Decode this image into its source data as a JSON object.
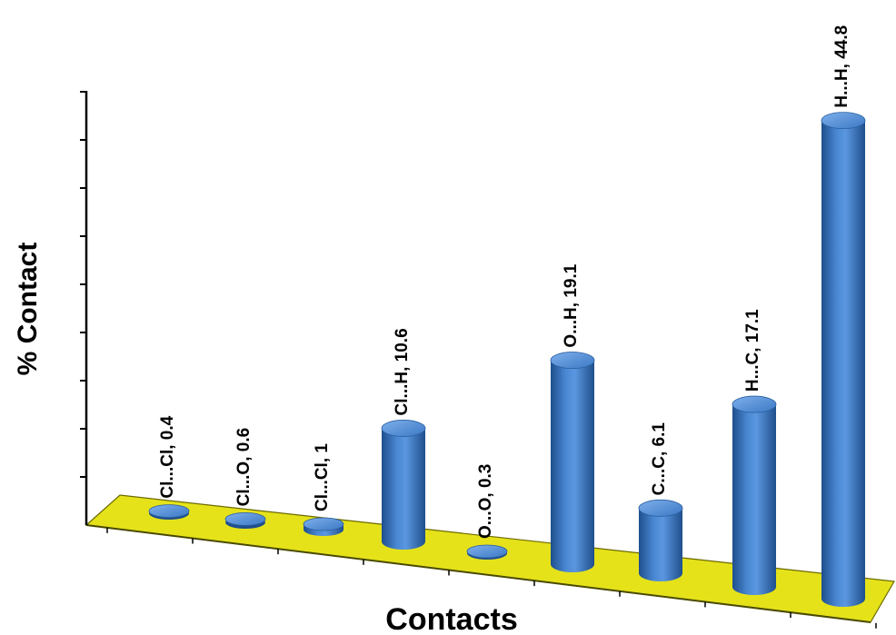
{
  "chart_data": {
    "type": "bar",
    "style": "3d-cylinder",
    "xlabel": "Contacts",
    "ylabel": "% Contact",
    "categories": [
      "Cl...Cl",
      "Cl...O",
      "Cl...Cl",
      "Cl...H",
      "O...O",
      "O...H",
      "C...C",
      "H...C",
      "H...H"
    ],
    "values": [
      0.4,
      0.6,
      1,
      10.6,
      0.3,
      19.1,
      6.1,
      17.1,
      44.8
    ],
    "data_labels": [
      "Cl...Cl, 0.4",
      "Cl...O, 0.6",
      "Cl...Cl, 1",
      "Cl...H, 10.6",
      "O...O, 0.3",
      "O...H, 19.1",
      "C...C, 6.1",
      "H...C, 17.1",
      "H...H, 44.8"
    ],
    "ylim": [
      0,
      45
    ],
    "grid": false,
    "legend": "none",
    "colors": {
      "bar": "#3b78c4",
      "bar_light": "#6fa3e6",
      "bar_dark": "#1f4f8c",
      "floor": "#e5e21a",
      "floor_edge": "#6b6a00"
    }
  }
}
